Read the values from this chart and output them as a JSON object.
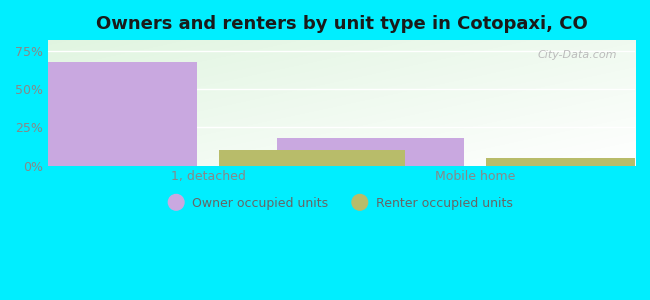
{
  "title": "Owners and renters by unit type in Cotopaxi, CO",
  "categories": [
    "1, detached",
    "Mobile home"
  ],
  "owner_values": [
    68.0,
    18.0
  ],
  "renter_values": [
    10.0,
    5.0
  ],
  "owner_color": "#c9a8e0",
  "renter_color": "#b8bc6a",
  "yticks": [
    0,
    25,
    50,
    75
  ],
  "ytick_labels": [
    "0%",
    "25%",
    "50%",
    "75%"
  ],
  "ylim": [
    0,
    82
  ],
  "background_outer": "#00eeff",
  "watermark": "City-Data.com",
  "legend_owner": "Owner occupied units",
  "legend_renter": "Renter occupied units",
  "bar_width": 0.35,
  "title_fontsize": 13,
  "tick_fontsize": 9
}
